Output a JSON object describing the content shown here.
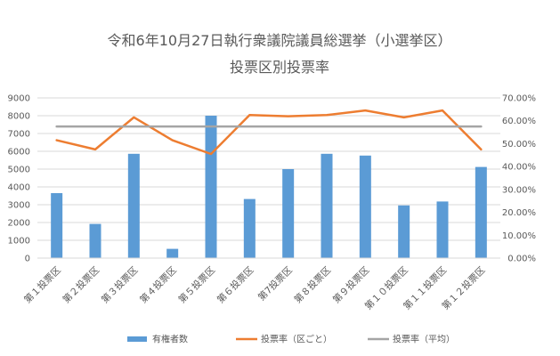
{
  "chart_data": {
    "type": "bar",
    "title": "令和6年10月27日執行衆議院議員総選挙（小選挙区）",
    "subtitle": "投票区別投票率",
    "categories": [
      "第１投票区",
      "第２投票区",
      "第３投票区",
      "第４投票区",
      "第５投票区",
      "第６投票区",
      "第7投票区",
      "第８投票区",
      "第９投票区",
      "第１０投票区",
      "第１１投票区",
      "第１２投票区"
    ],
    "y_left": {
      "min": 0,
      "max": 9000,
      "step": 1000,
      "ticks": [
        "0",
        "1000",
        "2000",
        "3000",
        "4000",
        "5000",
        "6000",
        "7000",
        "8000",
        "9000"
      ]
    },
    "y_right": {
      "min": 0,
      "max": 70,
      "step": 10,
      "ticks": [
        "0.00%",
        "10.00%",
        "20.00%",
        "30.00%",
        "40.00%",
        "50.00%",
        "60.00%",
        "70.00%"
      ]
    },
    "grid": true,
    "legend_position": "bottom",
    "series": [
      {
        "name": "有権者数",
        "type": "bar",
        "axis": "left",
        "color": "#5b9bd5",
        "values": [
          3650,
          1920,
          5860,
          520,
          8000,
          3320,
          5000,
          5860,
          5760,
          2960,
          3180,
          5120
        ]
      },
      {
        "name": "投票率（区ごと）",
        "type": "line",
        "axis": "right",
        "color": "#ed7d31",
        "values": [
          51.5,
          47.5,
          61.5,
          51.5,
          45.5,
          62.5,
          62.0,
          62.5,
          64.5,
          61.5,
          64.5,
          47.5
        ]
      },
      {
        "name": "投票率（平均）",
        "type": "line",
        "axis": "right",
        "color": "#a5a5a5",
        "values": [
          57.5,
          57.5,
          57.5,
          57.5,
          57.5,
          57.5,
          57.5,
          57.5,
          57.5,
          57.5,
          57.5,
          57.5
        ]
      }
    ]
  }
}
